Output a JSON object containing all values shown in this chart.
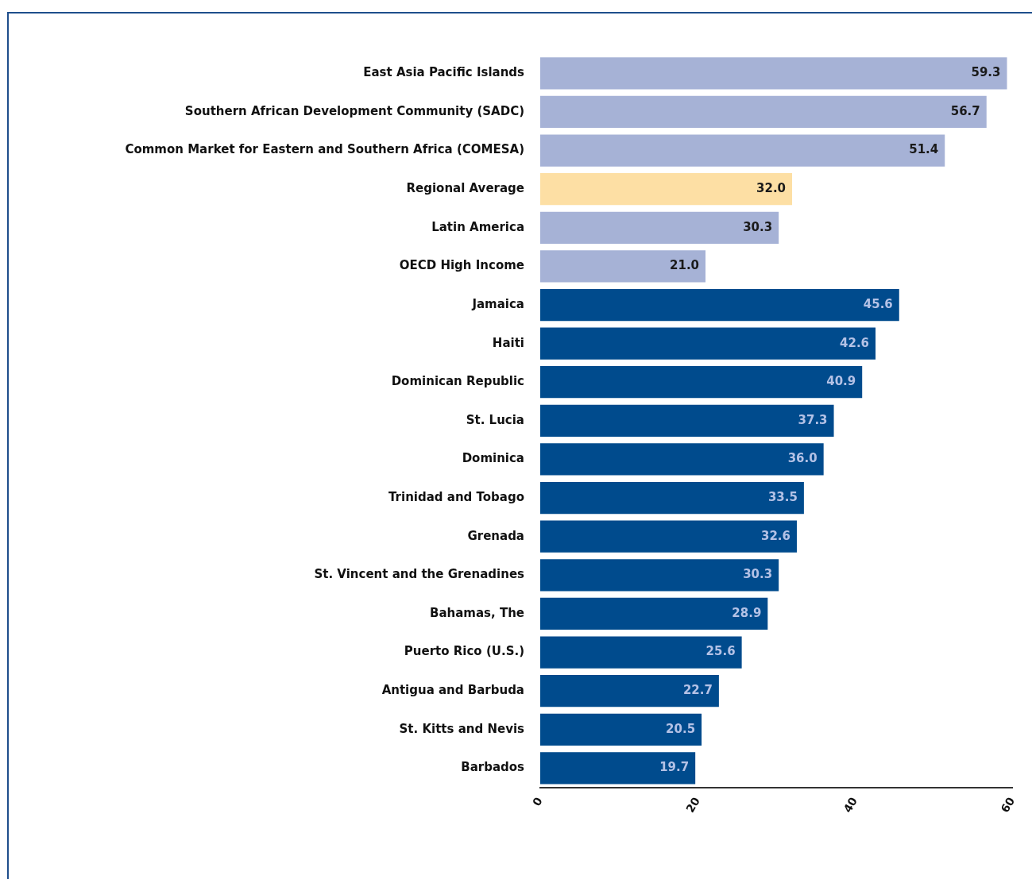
{
  "chart_data": {
    "type": "bar",
    "orientation": "horizontal",
    "categories": [
      "East Asia Pacific Islands",
      "Southern African Development Community (SADC)",
      "Common Market for Eastern and Southern Africa (COMESA)",
      "Regional Average",
      "Latin America",
      "OECD High Income",
      "Jamaica",
      "Haiti",
      "Dominican Republic",
      "St. Lucia",
      "Dominica",
      "Trinidad and Tobago",
      "Grenada",
      "St. Vincent and the Grenadines",
      "Bahamas, The",
      "Puerto Rico (U.S.)",
      "Antigua and Barbuda",
      "St. Kitts and Nevis",
      "Barbados"
    ],
    "values": [
      59.3,
      56.7,
      51.4,
      32.0,
      30.3,
      21.0,
      45.6,
      42.6,
      40.9,
      37.3,
      36.0,
      33.5,
      32.6,
      30.3,
      28.9,
      25.6,
      22.7,
      20.5,
      19.7
    ],
    "value_labels": [
      "59.3",
      "56.7",
      "51.4",
      "32.0",
      "30.3",
      "21.0",
      "45.6",
      "42.6",
      "40.9",
      "37.3",
      "36.0",
      "33.5",
      "32.6",
      "30.3",
      "28.9",
      "25.6",
      "22.7",
      "20.5",
      "19.7"
    ],
    "colors": [
      "#a6b2d6",
      "#a6b2d6",
      "#a6b2d6",
      "#fddfa4",
      "#a6b2d6",
      "#a6b2d6",
      "#004b8d",
      "#004b8d",
      "#004b8d",
      "#004b8d",
      "#004b8d",
      "#004b8d",
      "#004b8d",
      "#004b8d",
      "#004b8d",
      "#004b8d",
      "#004b8d",
      "#004b8d",
      "#004b8d"
    ],
    "xlim": [
      0,
      60
    ],
    "xticks": [
      0,
      20,
      40,
      60
    ],
    "grid": false,
    "legend": false
  }
}
